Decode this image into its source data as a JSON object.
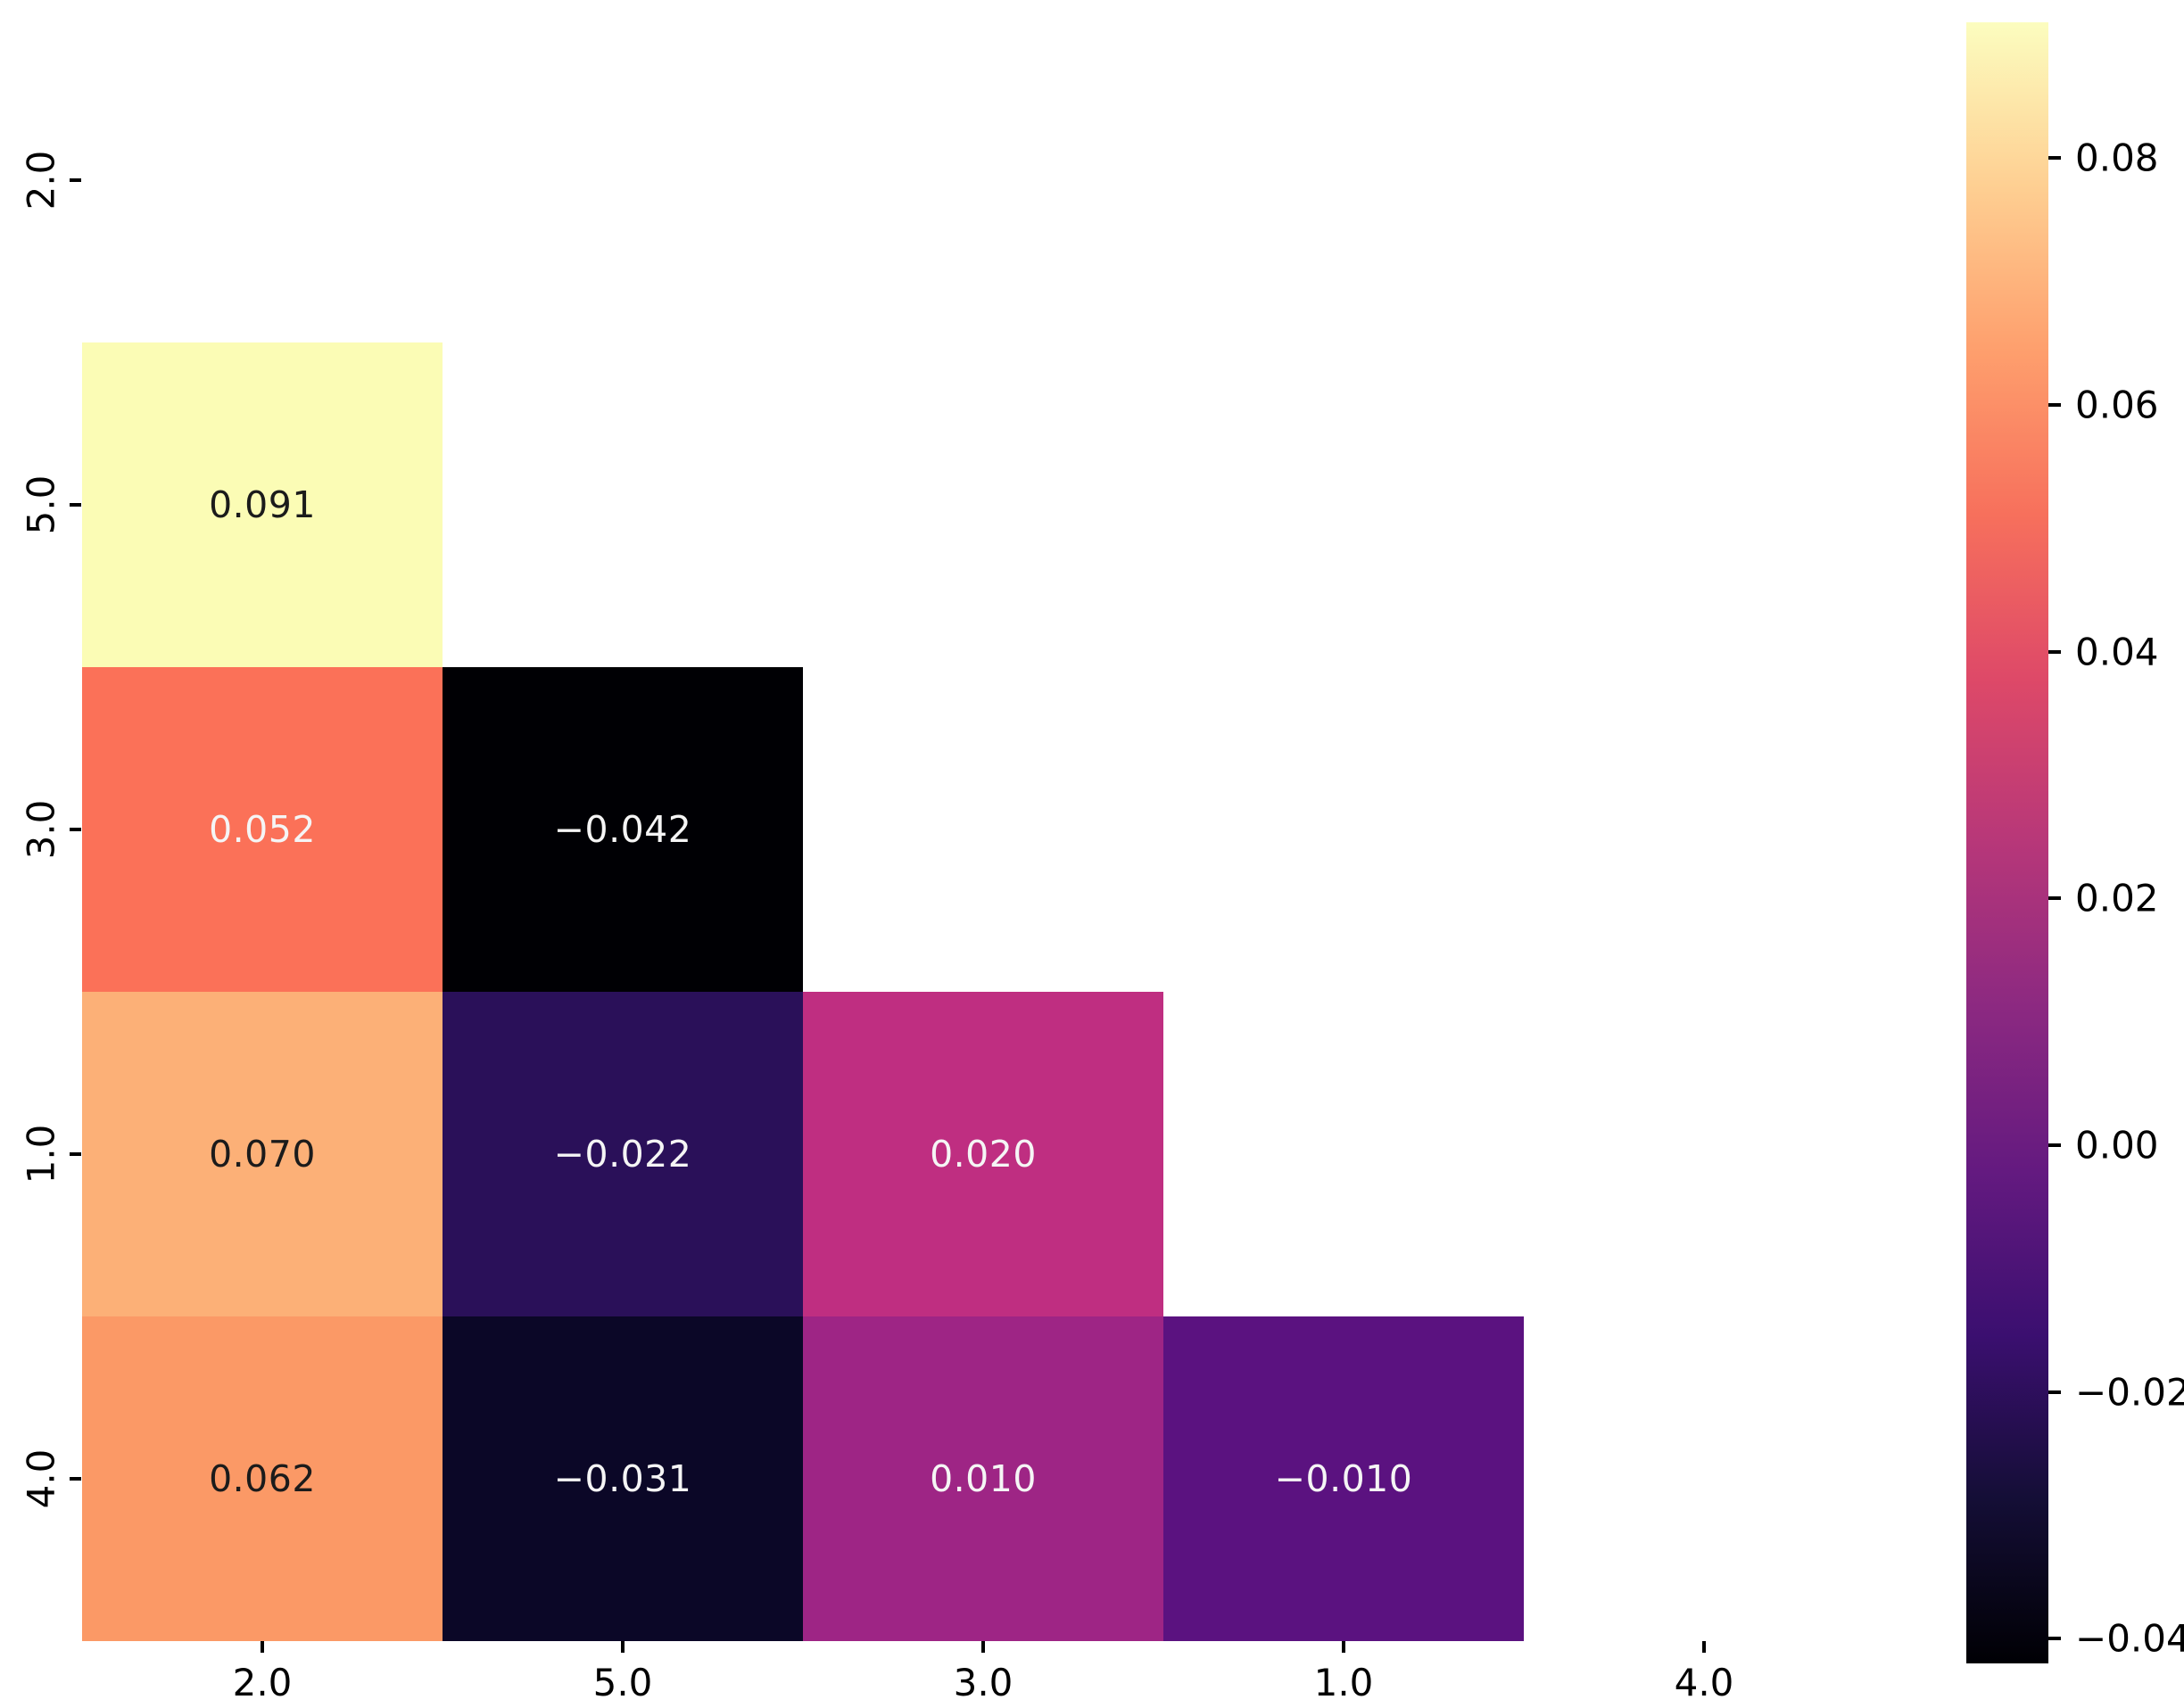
{
  "figure": {
    "background_color": "#ffffff",
    "tick_color": "#000000",
    "label_color": "#000000"
  },
  "chart_data": {
    "type": "heatmap",
    "title": "",
    "xlabel": "",
    "ylabel": "",
    "x_categories": [
      "2.0",
      "5.0",
      "3.0",
      "1.0",
      "4.0"
    ],
    "y_categories": [
      "2.0",
      "5.0",
      "3.0",
      "1.0",
      "4.0"
    ],
    "matrix": [
      [
        null,
        null,
        null,
        null,
        null
      ],
      [
        0.091,
        null,
        null,
        null,
        null
      ],
      [
        0.052,
        -0.042,
        null,
        null,
        null
      ],
      [
        0.07,
        -0.022,
        0.02,
        null,
        null
      ],
      [
        0.062,
        -0.031,
        0.01,
        -0.01,
        null
      ]
    ],
    "mask": "upper-triangle-and-diagonal-hidden",
    "cells": [
      {
        "row": 1,
        "col": 0,
        "label": "0.091",
        "value": 0.091,
        "bg": "#fbfcb5",
        "fg": "#1b1b1b"
      },
      {
        "row": 2,
        "col": 0,
        "label": "0.052",
        "value": 0.052,
        "bg": "#fb7158",
        "fg": "#f5f5f5"
      },
      {
        "row": 2,
        "col": 1,
        "label": "−0.042",
        "value": -0.042,
        "bg": "#000004",
        "fg": "#f5f5f5"
      },
      {
        "row": 3,
        "col": 0,
        "label": "0.070",
        "value": 0.07,
        "bg": "#fcb077",
        "fg": "#1b1b1b"
      },
      {
        "row": 3,
        "col": 1,
        "label": "−0.022",
        "value": -0.022,
        "bg": "#2a1059",
        "fg": "#f5f5f5"
      },
      {
        "row": 3,
        "col": 2,
        "label": "0.020",
        "value": 0.02,
        "bg": "#bf2e81",
        "fg": "#f5f5f5"
      },
      {
        "row": 4,
        "col": 0,
        "label": "0.062",
        "value": 0.062,
        "bg": "#fb9966",
        "fg": "#1b1b1b"
      },
      {
        "row": 4,
        "col": 1,
        "label": "−0.031",
        "value": -0.031,
        "bg": "#0b0727",
        "fg": "#f5f5f5"
      },
      {
        "row": 4,
        "col": 2,
        "label": "0.010",
        "value": 0.01,
        "bg": "#9e2585",
        "fg": "#f5f5f5"
      },
      {
        "row": 4,
        "col": 3,
        "label": "−0.010",
        "value": -0.01,
        "bg": "#5b1280",
        "fg": "#f5f5f5"
      }
    ],
    "colormap": "magma",
    "colorbar": {
      "position": "right",
      "vmin": -0.042,
      "vmax": 0.091,
      "ticks": [
        {
          "label": "0.08",
          "value": 0.08
        },
        {
          "label": "0.06",
          "value": 0.06
        },
        {
          "label": "0.04",
          "value": 0.04
        },
        {
          "label": "0.02",
          "value": 0.02
        },
        {
          "label": "0.00",
          "value": 0.0
        },
        {
          "label": "−0.02",
          "value": -0.02
        },
        {
          "label": "−0.04",
          "value": -0.04
        }
      ],
      "gradient_bottom_to_top": [
        "#000004",
        "#140e36",
        "#3b0f70",
        "#641a80",
        "#8c2981",
        "#b73779",
        "#de4968",
        "#f7705c",
        "#fe9f6d",
        "#fecf92",
        "#fcfdbf"
      ]
    },
    "layout_hints": {
      "grid": false,
      "spines": false,
      "y_tick_label_rotation_deg": 90,
      "annotations_shown": true
    }
  }
}
